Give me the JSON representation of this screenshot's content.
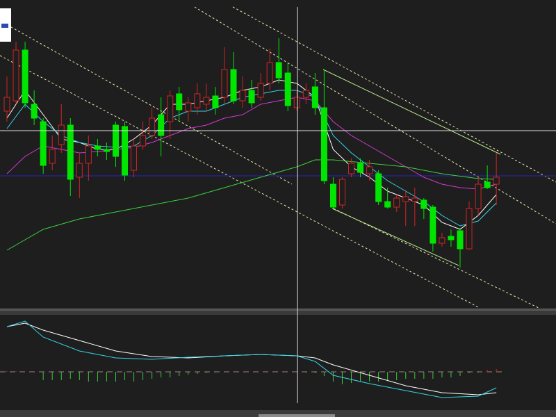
{
  "chart_data": [
    {
      "type": "candlestick",
      "up_color": "#d02424",
      "down_color": "#00e600",
      "ylim": [
        0,
        430
      ],
      "open": [
        280,
        295,
        368,
        290,
        265,
        205,
        232,
        260,
        185,
        205,
        230,
        225,
        260,
        258,
        195,
        230,
        245,
        275,
        265,
        305,
        280,
        285,
        290,
        302,
        300,
        340,
        295,
        310,
        300,
        320,
        350,
        335,
        285,
        300,
        315,
        285,
        175,
        145,
        190,
        205,
        190,
        190,
        150,
        142,
        150,
        150,
        152,
        142,
        90,
        100,
        108,
        82,
        140,
        178,
        175
      ],
      "high": [
        330,
        380,
        380,
        310,
        270,
        245,
        290,
        270,
        220,
        245,
        240,
        235,
        265,
        265,
        240,
        265,
        285,
        300,
        310,
        315,
        300,
        320,
        320,
        315,
        372,
        365,
        330,
        325,
        335,
        370,
        385,
        350,
        310,
        320,
        335,
        340,
        185,
        185,
        212,
        212,
        210,
        195,
        170,
        160,
        165,
        170,
        155,
        145,
        105,
        110,
        112,
        150,
        185,
        202,
        220
      ],
      "low": [
        265,
        290,
        285,
        260,
        190,
        195,
        220,
        158,
        155,
        180,
        215,
        210,
        200,
        180,
        185,
        225,
        240,
        215,
        240,
        265,
        265,
        275,
        280,
        275,
        290,
        290,
        285,
        285,
        295,
        310,
        320,
        280,
        280,
        290,
        275,
        175,
        140,
        140,
        185,
        185,
        180,
        145,
        140,
        135,
        115,
        115,
        125,
        78,
        85,
        85,
        55,
        80,
        130,
        168,
        145
      ],
      "close": [
        300,
        368,
        292,
        270,
        202,
        225,
        260,
        182,
        205,
        230,
        225,
        222,
        215,
        188,
        230,
        245,
        270,
        245,
        302,
        282,
        292,
        305,
        300,
        285,
        340,
        295,
        310,
        292,
        320,
        350,
        328,
        288,
        300,
        310,
        285,
        180,
        142,
        182,
        205,
        192,
        200,
        150,
        142,
        155,
        157,
        155,
        140,
        90,
        98,
        95,
        82,
        140,
        175,
        170,
        185
      ],
      "series": [
        {
          "color": "#ffffff",
          "x": [
            0,
            2,
            4,
            6,
            8,
            10,
            12,
            14,
            16,
            18,
            20,
            22,
            24,
            26,
            28,
            30,
            32,
            34,
            36,
            38,
            40,
            42,
            44,
            46,
            48,
            50,
            52,
            54
          ],
          "values": [
            270,
            310,
            275,
            240,
            235,
            225,
            225,
            240,
            260,
            290,
            290,
            295,
            300,
            310,
            315,
            325,
            320,
            300,
            225,
            200,
            185,
            165,
            155,
            145,
            120,
            110,
            130,
            160
          ]
        },
        {
          "color": "#35d6e6",
          "x": [
            0,
            2,
            4,
            6,
            8,
            10,
            12,
            14,
            16,
            18,
            20,
            22,
            24,
            26,
            28,
            30,
            32,
            34,
            36,
            38,
            40,
            42,
            44,
            46,
            48,
            50,
            52,
            54
          ],
          "values": [
            255,
            290,
            265,
            245,
            235,
            230,
            228,
            230,
            245,
            270,
            280,
            280,
            290,
            300,
            305,
            310,
            310,
            300,
            245,
            220,
            200,
            180,
            165,
            150,
            130,
            115,
            122,
            148
          ]
        },
        {
          "color": "#d23ad2",
          "x": [
            0,
            2,
            4,
            6,
            8,
            10,
            12,
            14,
            16,
            18,
            20,
            22,
            24,
            26,
            28,
            30,
            32,
            34,
            36,
            38,
            40,
            42,
            44,
            46,
            48,
            50,
            52,
            54
          ],
          "values": [
            190,
            215,
            230,
            225,
            220,
            222,
            225,
            228,
            235,
            245,
            255,
            260,
            270,
            275,
            290,
            295,
            300,
            295,
            265,
            245,
            230,
            215,
            200,
            185,
            175,
            170,
            168,
            175
          ]
        },
        {
          "color": "#3cd23c",
          "x": [
            0,
            4,
            8,
            12,
            16,
            20,
            24,
            28,
            32,
            34,
            36,
            40,
            44,
            48,
            52,
            54
          ],
          "values": [
            80,
            110,
            125,
            135,
            145,
            155,
            170,
            185,
            200,
            210,
            210,
            205,
            200,
            190,
            183,
            182
          ]
        }
      ]
    },
    {
      "type": "indicator",
      "ylim": [
        -45,
        75
      ],
      "histogram": {
        "color": "#3cc83c",
        "neg_color": "#3cc83c",
        "pos_color": "#d02424",
        "values": [
          1,
          1,
          0,
          0,
          -12,
          -12,
          -12,
          -10,
          -12,
          -14,
          -14,
          -14,
          -14,
          -12,
          -14,
          -12,
          -10,
          -8,
          -8,
          -6,
          -4,
          -3,
          -2,
          -1,
          1,
          1,
          0,
          0,
          0,
          0,
          0,
          0,
          0,
          -1,
          -2,
          -6,
          -14,
          -18,
          -16,
          -14,
          -14,
          -14,
          -12,
          -12,
          -10,
          -10,
          -10,
          -10,
          -8,
          -8,
          -6,
          -2,
          -1,
          3,
          4
        ]
      },
      "series": [
        {
          "color": "#ffffff",
          "x": [
            0,
            2,
            4,
            8,
            12,
            16,
            20,
            24,
            28,
            32,
            34,
            36,
            40,
            44,
            48,
            52,
            54
          ],
          "values": [
            65,
            70,
            60,
            45,
            30,
            22,
            20,
            23,
            25,
            23,
            20,
            10,
            -5,
            -20,
            -30,
            -33,
            -30
          ]
        },
        {
          "color": "#35d6e6",
          "x": [
            0,
            2,
            4,
            8,
            12,
            16,
            20,
            24,
            28,
            32,
            34,
            36,
            40,
            44,
            48,
            52,
            54
          ],
          "values": [
            65,
            73,
            50,
            30,
            20,
            18,
            21,
            23,
            25,
            23,
            15,
            -5,
            -17,
            -27,
            -37,
            -35,
            -23
          ]
        }
      ]
    }
  ]
}
